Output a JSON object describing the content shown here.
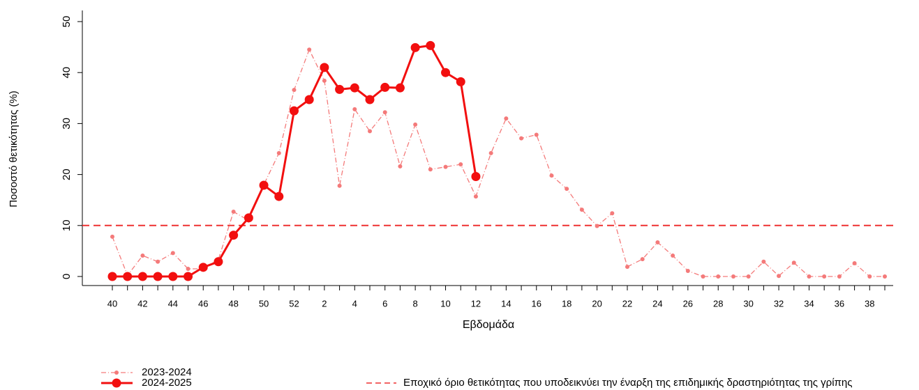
{
  "chart_data": {
    "type": "line",
    "x_label": "Εβδομάδα",
    "y_label": "Ποσοστό θετικότητας (%)",
    "categories": [
      "40",
      null,
      "42",
      null,
      "44",
      null,
      "46",
      null,
      "48",
      null,
      "50",
      null,
      "52",
      null,
      "2",
      null,
      "4",
      null,
      "6",
      null,
      "8",
      null,
      "10",
      null,
      "12",
      null,
      "14",
      null,
      "16",
      null,
      "18",
      null,
      "20",
      null,
      "22",
      null,
      "24",
      null,
      "26",
      null,
      "28",
      null,
      "30",
      null,
      "32",
      null,
      "34",
      null,
      "36",
      null,
      "38",
      null
    ],
    "series": [
      {
        "name": "2023-2024",
        "color": "#f47a7a",
        "style": "dashdot",
        "values": [
          7.8,
          0.2,
          4.1,
          2.9,
          4.6,
          1.5,
          1.5,
          3.3,
          12.7,
          11,
          18,
          24.2,
          36.6,
          44.5,
          38.4,
          17.8,
          32.8,
          28.5,
          32.2,
          21.6,
          29.8,
          21.0,
          21.5,
          22.0,
          15.7,
          24.2,
          31.0,
          27.1,
          27.8,
          19.8,
          17.2,
          13.1,
          9.9,
          12.4,
          1.9,
          3.4,
          6.7,
          4.1,
          1.1,
          0,
          0,
          0,
          0,
          2.9,
          0.1,
          2.7,
          0,
          0,
          0,
          2.6,
          0,
          0
        ]
      },
      {
        "name": "2024-2025",
        "color": "#f20f0f",
        "style": "solid",
        "values": [
          0,
          0,
          0,
          0,
          0,
          0,
          1.8,
          2.9,
          8.1,
          11.5,
          17.9,
          15.7,
          32.5,
          34.7,
          41.0,
          36.7,
          37.0,
          34.7,
          37.1,
          37.0,
          44.9,
          45.3,
          40.0,
          38.2,
          19.6,
          null,
          null,
          null,
          null,
          null,
          null,
          null,
          null,
          null,
          null,
          null,
          null,
          null,
          null,
          null,
          null,
          null,
          null,
          null,
          null,
          null,
          null,
          null,
          null,
          null,
          null,
          null
        ]
      }
    ],
    "threshold": {
      "value": 10,
      "label": "Εποχικό όριο θετικότητας που υποδεικνύει την έναρξη της επιδημικής δραστηριότητας της γρίπης",
      "color": "#ee3030"
    },
    "ylim": [
      0,
      50
    ],
    "yticks": [
      0,
      10,
      20,
      30,
      40,
      50
    ]
  }
}
